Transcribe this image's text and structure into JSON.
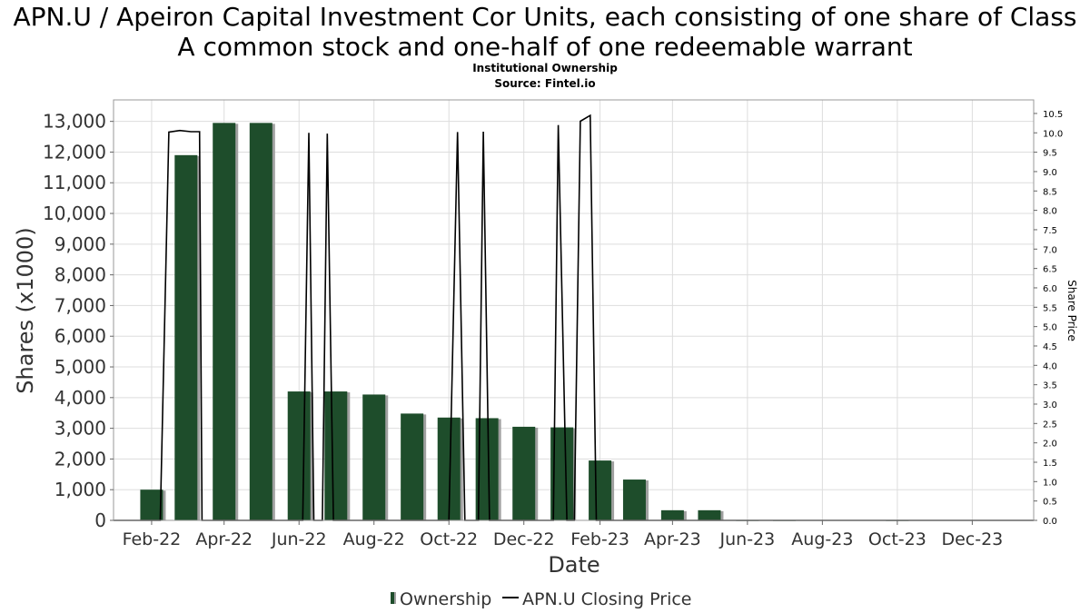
{
  "title_line1": "APN.U / Apeiron Capital Investment Cor Units, each consisting of one share of Class",
  "title_line2": "A common stock and one-half of one redeemable warrant",
  "subtitle_line1": "Institutional Ownership",
  "subtitle_line2": "Source: Fintel.io",
  "colors": {
    "bar": "#1e4d2b",
    "bar_shadow": "#a0a0a0",
    "price_line": "#000000",
    "grid": "#dddddd"
  },
  "chart_data": {
    "type": "bar",
    "xlabel": "Date",
    "ylabel": "Shares (x1000)",
    "ylabel_right": "Share Price",
    "ylim": [
      0,
      13700
    ],
    "ylim_right": [
      0,
      10.85
    ],
    "grid": true,
    "legend_placement": "bottom-center",
    "x_range": [
      "2022-01-01",
      "2024-01-20"
    ],
    "x_ticks": [
      {
        "date": "2022-02-01",
        "label": "Feb-22"
      },
      {
        "date": "2022-04-01",
        "label": "Apr-22"
      },
      {
        "date": "2022-06-01",
        "label": "Jun-22"
      },
      {
        "date": "2022-08-01",
        "label": "Aug-22"
      },
      {
        "date": "2022-10-01",
        "label": "Oct-22"
      },
      {
        "date": "2022-12-01",
        "label": "Dec-22"
      },
      {
        "date": "2023-02-01",
        "label": "Feb-23"
      },
      {
        "date": "2023-04-01",
        "label": "Apr-23"
      },
      {
        "date": "2023-06-01",
        "label": "Jun-23"
      },
      {
        "date": "2023-08-01",
        "label": "Aug-23"
      },
      {
        "date": "2023-10-01",
        "label": "Oct-23"
      },
      {
        "date": "2023-12-01",
        "label": "Dec-23"
      }
    ],
    "y_ticks_left": [
      {
        "value": 0,
        "label": "0"
      },
      {
        "value": 1000,
        "label": "1,000"
      },
      {
        "value": 2000,
        "label": "2,000"
      },
      {
        "value": 3000,
        "label": "3,000"
      },
      {
        "value": 4000,
        "label": "4,000"
      },
      {
        "value": 5000,
        "label": "5,000"
      },
      {
        "value": 6000,
        "label": "6,000"
      },
      {
        "value": 7000,
        "label": "7,000"
      },
      {
        "value": 8000,
        "label": "8,000"
      },
      {
        "value": 9000,
        "label": "9,000"
      },
      {
        "value": 10000,
        "label": "10,000"
      },
      {
        "value": 11000,
        "label": "11,000"
      },
      {
        "value": 12000,
        "label": "12,000"
      },
      {
        "value": 13000,
        "label": "13,000"
      }
    ],
    "y_ticks_right": [
      {
        "value": 0,
        "label": "0.0"
      },
      {
        "value": 0.5,
        "label": "0.5"
      },
      {
        "value": 1.0,
        "label": "1.0"
      },
      {
        "value": 1.5,
        "label": "1.5"
      },
      {
        "value": 2.0,
        "label": "2.0"
      },
      {
        "value": 2.5,
        "label": "2.5"
      },
      {
        "value": 3.0,
        "label": "3.0"
      },
      {
        "value": 3.5,
        "label": "3.5"
      },
      {
        "value": 4.0,
        "label": "4.0"
      },
      {
        "value": 4.5,
        "label": "4.5"
      },
      {
        "value": 5.0,
        "label": "5.0"
      },
      {
        "value": 5.5,
        "label": "5.5"
      },
      {
        "value": 6.0,
        "label": "6.0"
      },
      {
        "value": 6.5,
        "label": "6.5"
      },
      {
        "value": 7.0,
        "label": "7.0"
      },
      {
        "value": 7.5,
        "label": "7.5"
      },
      {
        "value": 8.0,
        "label": "8.0"
      },
      {
        "value": 8.5,
        "label": "8.5"
      },
      {
        "value": 9.0,
        "label": "9.0"
      },
      {
        "value": 9.5,
        "label": "9.5"
      },
      {
        "value": 10.0,
        "label": "10.0"
      },
      {
        "value": 10.5,
        "label": "10.5"
      }
    ],
    "series": [
      {
        "name": "Ownership",
        "type": "bar",
        "points": [
          {
            "date": "2022-02-01",
            "value": 1000
          },
          {
            "date": "2022-03-01",
            "value": 11900
          },
          {
            "date": "2022-04-01",
            "value": 12950
          },
          {
            "date": "2022-05-01",
            "value": 12950
          },
          {
            "date": "2022-06-01",
            "value": 4200
          },
          {
            "date": "2022-07-01",
            "value": 4200
          },
          {
            "date": "2022-08-01",
            "value": 4100
          },
          {
            "date": "2022-09-01",
            "value": 3480
          },
          {
            "date": "2022-10-01",
            "value": 3350
          },
          {
            "date": "2022-11-01",
            "value": 3330
          },
          {
            "date": "2022-12-01",
            "value": 3050
          },
          {
            "date": "2023-01-01",
            "value": 3030
          },
          {
            "date": "2023-02-01",
            "value": 1950
          },
          {
            "date": "2023-03-01",
            "value": 1330
          },
          {
            "date": "2023-04-01",
            "value": 330
          },
          {
            "date": "2023-05-01",
            "value": 330
          },
          {
            "date": "2023-06-01",
            "value": 10
          },
          {
            "date": "2023-07-01",
            "value": 10
          },
          {
            "date": "2023-10-01",
            "value": 10
          }
        ]
      },
      {
        "name": "APN.U Closing Price",
        "type": "line",
        "axis": "right",
        "points": [
          {
            "date": "2022-01-01",
            "value": 0
          },
          {
            "date": "2022-02-08",
            "value": 0
          },
          {
            "date": "2022-02-15",
            "value": 10.02
          },
          {
            "date": "2022-02-24",
            "value": 10.06
          },
          {
            "date": "2022-03-05",
            "value": 10.03
          },
          {
            "date": "2022-03-12",
            "value": 10.03
          },
          {
            "date": "2022-03-14",
            "value": 0
          },
          {
            "date": "2022-06-04",
            "value": 0
          },
          {
            "date": "2022-06-09",
            "value": 10.0
          },
          {
            "date": "2022-06-13",
            "value": 0
          },
          {
            "date": "2022-06-20",
            "value": 0
          },
          {
            "date": "2022-06-24",
            "value": 9.98
          },
          {
            "date": "2022-06-29",
            "value": 0
          },
          {
            "date": "2022-10-01",
            "value": 0
          },
          {
            "date": "2022-10-08",
            "value": 10.02
          },
          {
            "date": "2022-10-14",
            "value": 0
          },
          {
            "date": "2022-10-25",
            "value": 0
          },
          {
            "date": "2022-10-29",
            "value": 10.03
          },
          {
            "date": "2022-11-03",
            "value": 0
          },
          {
            "date": "2022-12-25",
            "value": 0
          },
          {
            "date": "2022-12-29",
            "value": 10.2
          },
          {
            "date": "2023-01-05",
            "value": 0
          },
          {
            "date": "2023-01-11",
            "value": 0
          },
          {
            "date": "2023-01-16",
            "value": 10.3
          },
          {
            "date": "2023-01-24",
            "value": 10.45
          },
          {
            "date": "2023-01-29",
            "value": 0
          },
          {
            "date": "2024-01-20",
            "value": 0
          }
        ]
      }
    ]
  }
}
